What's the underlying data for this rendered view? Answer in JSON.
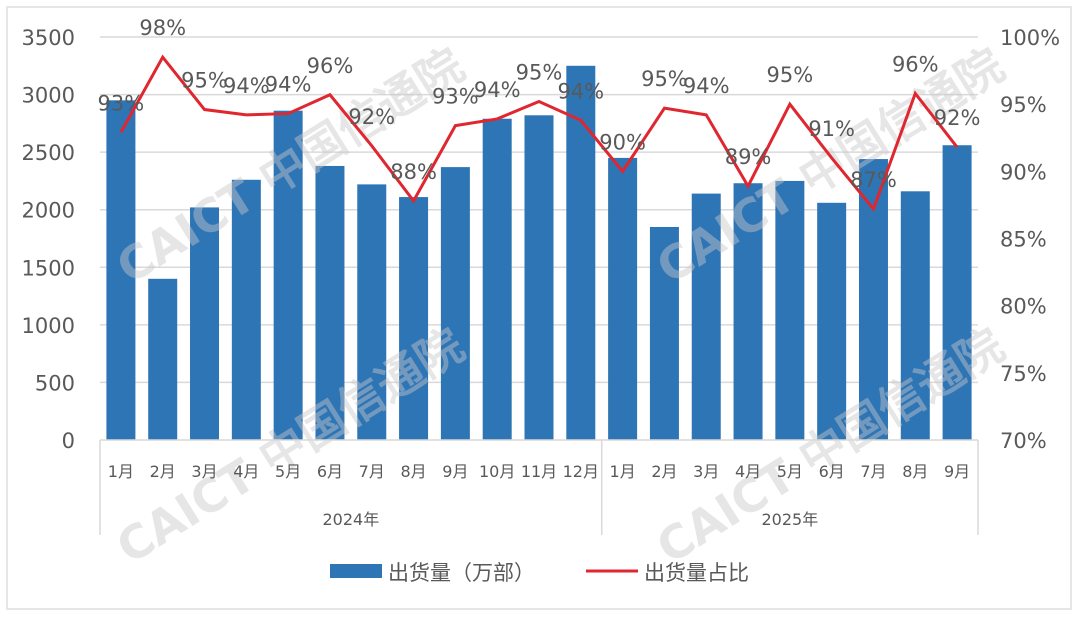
{
  "chart_data": {
    "type": "bar+line",
    "title": "",
    "groups": [
      {
        "label": "2024年",
        "categories": [
          "1月",
          "2月",
          "3月",
          "4月",
          "5月",
          "6月",
          "7月",
          "8月",
          "9月",
          "10月",
          "11月",
          "12月"
        ]
      },
      {
        "label": "2025年",
        "categories": [
          "1月",
          "2月",
          "3月",
          "4月",
          "5月",
          "6月",
          "7月",
          "8月",
          "9月"
        ]
      }
    ],
    "categories": [
      "1月",
      "2月",
      "3月",
      "4月",
      "5月",
      "6月",
      "7月",
      "8月",
      "9月",
      "10月",
      "11月",
      "12月",
      "1月",
      "2月",
      "3月",
      "4月",
      "5月",
      "6月",
      "7月",
      "8月",
      "9月"
    ],
    "series": [
      {
        "name": "出货量（万部）",
        "type": "bar",
        "axis": "left",
        "color": "#2e75b6",
        "values": [
          2950,
          1400,
          2020,
          2260,
          2860,
          2380,
          2220,
          2110,
          2370,
          2790,
          2820,
          3250,
          2450,
          1850,
          2140,
          2230,
          2250,
          2060,
          2440,
          2160,
          2560
        ]
      },
      {
        "name": "出货量占比",
        "type": "line",
        "axis": "right",
        "color": "#e0262f",
        "values": [
          92.9,
          98.5,
          94.6,
          94.2,
          94.3,
          95.7,
          91.9,
          87.8,
          93.4,
          93.9,
          95.2,
          93.8,
          90.0,
          94.7,
          94.2,
          88.9,
          95.0,
          91.0,
          87.2,
          95.8,
          91.8
        ],
        "data_labels": [
          "93%",
          "98%",
          "95%",
          "94%",
          "94%",
          "96%",
          "92%",
          "88%",
          "93%",
          "94%",
          "95%",
          "94%",
          "90%",
          "95%",
          "94%",
          "89%",
          "95%",
          "91%",
          "87%",
          "96%",
          "92%"
        ]
      }
    ],
    "left_axis": {
      "ylim": [
        0,
        3500
      ],
      "ticks": [
        "0",
        "500",
        "1000",
        "1500",
        "2000",
        "2500",
        "3000",
        "3500"
      ]
    },
    "right_axis": {
      "ylim": [
        70,
        100
      ],
      "ticks": [
        "70%",
        "75%",
        "80%",
        "85%",
        "90%",
        "95%",
        "100%"
      ]
    },
    "xlabel": "",
    "ylabel": "",
    "grid": true,
    "legend_position": "bottom",
    "legend": [
      "出货量（万部）",
      "出货量占比"
    ]
  },
  "watermark": {
    "text_en": "CAICT",
    "text_cn": "中国信通院"
  }
}
